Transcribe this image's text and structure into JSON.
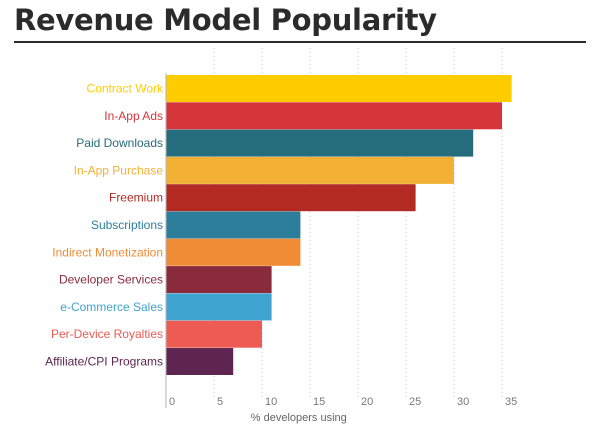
{
  "title": "Revenue Model Popularity",
  "chart_data": {
    "type": "bar",
    "orientation": "horizontal",
    "title": "Revenue Model Popularity",
    "xlabel": "% developers using",
    "ylabel": "",
    "xlim": [
      0,
      36
    ],
    "ticks": [
      0,
      5,
      10,
      15,
      20,
      25,
      30,
      35
    ],
    "grid": "vertical dotted",
    "categories": [
      "Contract Work",
      "In-App Ads",
      "Paid Downloads",
      "In-App Purchase",
      "Freemium",
      "Subscriptions",
      "Indirect Monetization",
      "Developer Services",
      "e-Commerce Sales",
      "Per-Device Royalties",
      "Affiliate/CPI Programs"
    ],
    "values": [
      36,
      35,
      32,
      30,
      26,
      14,
      14,
      11,
      11,
      10,
      7
    ],
    "colors": [
      "#ffcc00",
      "#d6363a",
      "#256c7c",
      "#f2b134",
      "#b22a22",
      "#2d7e9a",
      "#f08c36",
      "#8a2b3c",
      "#3fa4cf",
      "#ee5b52",
      "#5e2550"
    ]
  }
}
